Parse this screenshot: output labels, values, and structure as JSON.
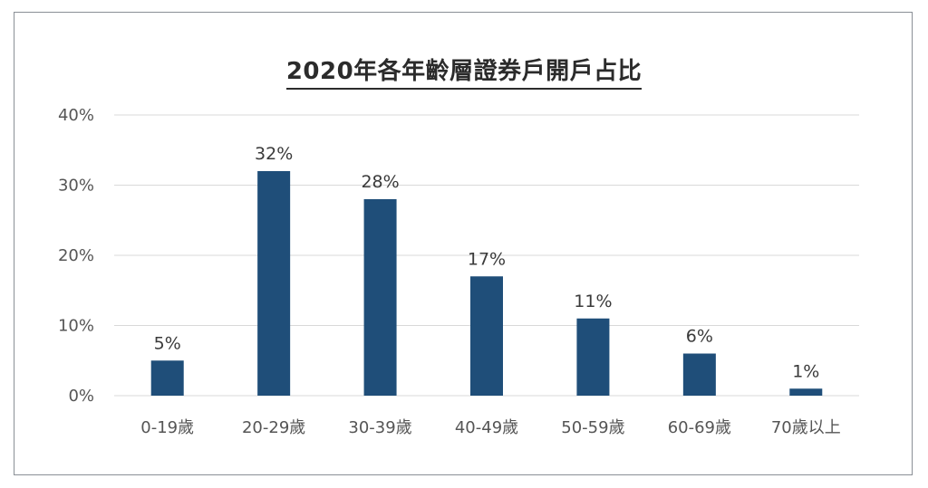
{
  "chart_data": {
    "type": "bar",
    "title": "2020年各年齡層證券戶開戶占比",
    "xlabel": "",
    "ylabel": "",
    "categories": [
      "0-19歲",
      "20-29歲",
      "30-39歲",
      "40-49歲",
      "50-59歲",
      "60-69歲",
      "70歲以上"
    ],
    "values": [
      5,
      32,
      28,
      17,
      11,
      6,
      1
    ],
    "data_labels": [
      "5%",
      "32%",
      "28%",
      "17%",
      "11%",
      "6%",
      "1%"
    ],
    "y_ticks": [
      0,
      10,
      20,
      30,
      40
    ],
    "y_tick_labels": [
      "0%",
      "10%",
      "20%",
      "30%",
      "40%"
    ],
    "ylim": [
      0,
      40
    ],
    "grid": true,
    "legend": "none",
    "colors": {
      "bar": "#1f4e79",
      "grid": "#d9d9d9",
      "frame": "#8a8f96"
    }
  }
}
